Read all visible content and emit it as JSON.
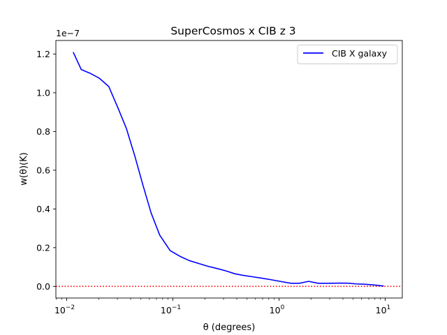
{
  "chart_data": {
    "type": "line",
    "title": "SuperCosmos x CIB z 3",
    "xlabel": "θ (degrees)",
    "ylabel": "w(θ)(K)",
    "y_offset_text": "1e−7",
    "x_scale": "log",
    "xlim": [
      0.0079,
      14.5
    ],
    "ylim": [
      -6e-09,
      1.27e-07
    ],
    "x_ticks": [
      {
        "value": 0.01,
        "base": "10",
        "exp": "−2"
      },
      {
        "value": 0.1,
        "base": "10",
        "exp": "−1"
      },
      {
        "value": 1,
        "base": "10",
        "exp": "0"
      },
      {
        "value": 10,
        "base": "10",
        "exp": "1"
      }
    ],
    "y_ticks": [
      {
        "value": 0.0,
        "label": "0.0"
      },
      {
        "value": 2e-08,
        "label": "0.2"
      },
      {
        "value": 4e-08,
        "label": "0.4"
      },
      {
        "value": 6e-08,
        "label": "0.6"
      },
      {
        "value": 8e-08,
        "label": "0.8"
      },
      {
        "value": 1e-07,
        "label": "1.0"
      },
      {
        "value": 1.2e-07,
        "label": "1.2"
      }
    ],
    "grid": false,
    "legend_position": "top-right",
    "series": [
      {
        "name": "CIB X galaxy",
        "color": "#0000ff",
        "style": "solid",
        "x": [
          0.0115,
          0.0137,
          0.0167,
          0.0203,
          0.0249,
          0.0302,
          0.0365,
          0.0437,
          0.0524,
          0.0623,
          0.0751,
          0.0942,
          0.117,
          0.143,
          0.176,
          0.213,
          0.262,
          0.316,
          0.384,
          0.46,
          0.56,
          0.68,
          0.83,
          1.0,
          1.3,
          1.55,
          1.9,
          2.35,
          2.85,
          3.5,
          4.3,
          5.3,
          6.5,
          8.0,
          9.7
        ],
        "y": [
          1.21e-07,
          1.12e-07,
          1.1e-07,
          1.075e-07,
          1.032e-07,
          9.25e-08,
          8.15e-08,
          6.75e-08,
          5.2e-08,
          3.8e-08,
          2.65e-08,
          1.85e-08,
          1.55e-08,
          1.33e-08,
          1.18e-08,
          1.04e-08,
          9.2e-09,
          8e-09,
          6.5e-09,
          5.7e-09,
          5e-09,
          4.3e-09,
          3.5e-09,
          2.7e-09,
          1.6e-09,
          1.6e-09,
          2.6e-09,
          1.6e-09,
          1.6e-09,
          1.7e-09,
          1.7e-09,
          1.3e-09,
          1.1e-09,
          7e-10,
          2e-10
        ]
      }
    ],
    "reference_line": {
      "y": 0.0,
      "color": "#ff0000",
      "style": "dotted"
    }
  }
}
